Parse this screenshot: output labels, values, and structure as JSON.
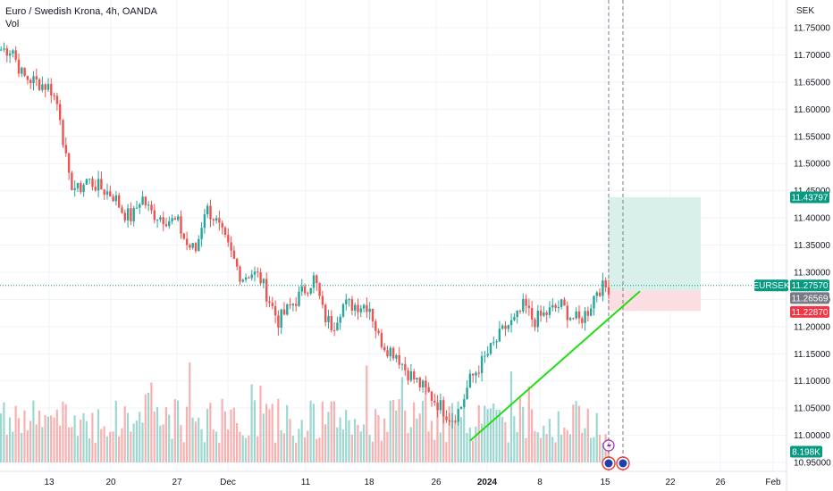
{
  "header": {
    "title": "Euro / Swedish Krona, 4h, OANDA",
    "indicator": "Vol",
    "currency": "SEK"
  },
  "price_axis": {
    "ticks": [
      "11.75000",
      "11.70000",
      "11.65000",
      "11.60000",
      "11.55000",
      "11.50000",
      "11.45000",
      "11.40000",
      "11.35000",
      "11.30000",
      "11.25000",
      "11.20000",
      "11.15000",
      "11.10000",
      "11.05000",
      "11.00000",
      "10.95000"
    ]
  },
  "time_axis": {
    "ticks": [
      {
        "label": "13",
        "bold": false
      },
      {
        "label": "20",
        "bold": false
      },
      {
        "label": "27",
        "bold": false
      },
      {
        "label": "Dec",
        "bold": false
      },
      {
        "label": "11",
        "bold": false
      },
      {
        "label": "18",
        "bold": false
      },
      {
        "label": "26",
        "bold": false
      },
      {
        "label": "2024",
        "bold": true
      },
      {
        "label": "8",
        "bold": false
      },
      {
        "label": "15",
        "bold": false
      },
      {
        "label": "22",
        "bold": false
      },
      {
        "label": "26",
        "bold": false
      },
      {
        "label": "Feb",
        "bold": false
      }
    ]
  },
  "labels": {
    "symbol": "EURSEK",
    "last_price": "11.27570",
    "entry": "11.26569",
    "take_profit": "11.43797",
    "stop_loss": "11.22870",
    "volume": "8.198K"
  },
  "colors": {
    "up": "#26a69a",
    "down": "#ef5350",
    "trendline": "#22dd11",
    "profit_zone": "#d6efe8",
    "loss_zone": "#fbdcdf",
    "accent_green": "#089981",
    "accent_red": "#f23645",
    "grid": "#f0f3fa"
  },
  "chart_data": {
    "type": "candlestick",
    "symbol": "EURSEK",
    "timeframe": "4h",
    "ylim": [
      10.94,
      11.77
    ],
    "grid": true,
    "close_anchors": [
      {
        "x": "Nov 9",
        "close": 11.7
      },
      {
        "x": "Nov 10",
        "close": 11.66
      },
      {
        "x": "Nov 13",
        "close": 11.64
      },
      {
        "x": "Nov 14",
        "close": 11.6
      },
      {
        "x": "Nov 15",
        "close": 11.47
      },
      {
        "x": "Nov 16",
        "close": 11.45
      },
      {
        "x": "Nov 17",
        "close": 11.47
      },
      {
        "x": "Nov 20",
        "close": 11.44
      },
      {
        "x": "Nov 21",
        "close": 11.41
      },
      {
        "x": "Nov 22",
        "close": 11.4
      },
      {
        "x": "Nov 23",
        "close": 11.44
      },
      {
        "x": "Nov 24",
        "close": 11.41
      },
      {
        "x": "Nov 27",
        "close": 11.39
      },
      {
        "x": "Nov 28",
        "close": 11.35
      },
      {
        "x": "Nov 29",
        "close": 11.34
      },
      {
        "x": "Nov 30",
        "close": 11.42
      },
      {
        "x": "Dec 1",
        "close": 11.4
      },
      {
        "x": "Dec 4",
        "close": 11.29
      },
      {
        "x": "Dec 5",
        "close": 11.3
      },
      {
        "x": "Dec 6",
        "close": 11.29
      },
      {
        "x": "Dec 7",
        "close": 11.25
      },
      {
        "x": "Dec 8",
        "close": 11.21
      },
      {
        "x": "Dec 11",
        "close": 11.27
      },
      {
        "x": "Dec 12",
        "close": 11.29
      },
      {
        "x": "Dec 13",
        "close": 11.22
      },
      {
        "x": "Dec 14",
        "close": 11.2
      },
      {
        "x": "Dec 15",
        "close": 11.24
      },
      {
        "x": "Dec 18",
        "close": 11.24
      },
      {
        "x": "Dec 19",
        "close": 11.18
      },
      {
        "x": "Dec 20",
        "close": 11.16
      },
      {
        "x": "Dec 21",
        "close": 11.15
      },
      {
        "x": "Dec 22",
        "close": 11.12
      },
      {
        "x": "Dec 26",
        "close": 11.05
      },
      {
        "x": "Dec 27",
        "close": 11.03
      },
      {
        "x": "Dec 28",
        "close": 11.05
      },
      {
        "x": "Dec 29",
        "close": 11.1
      },
      {
        "x": "Jan 2",
        "close": 11.2
      },
      {
        "x": "Jan 3",
        "close": 11.21
      },
      {
        "x": "Jan 4",
        "close": 11.24
      },
      {
        "x": "Jan 5",
        "close": 11.21
      },
      {
        "x": "Jan 8",
        "close": 11.24
      },
      {
        "x": "Jan 9",
        "close": 11.22
      },
      {
        "x": "Jan 10",
        "close": 11.21
      },
      {
        "x": "Jan 11",
        "close": 11.23
      },
      {
        "x": "Jan 12",
        "close": 11.27
      },
      {
        "x": "Jan 15",
        "close": 11.2757
      }
    ],
    "last_price": 11.2757,
    "trendline": {
      "from": {
        "x": "Dec 28",
        "price": 10.99
      },
      "to": {
        "x": "Jan 17",
        "price": 11.27
      }
    },
    "position": {
      "entry": 11.26569,
      "take_profit": 11.43797,
      "stop_loss": 11.2287
    },
    "volume_last": "8.198K"
  }
}
